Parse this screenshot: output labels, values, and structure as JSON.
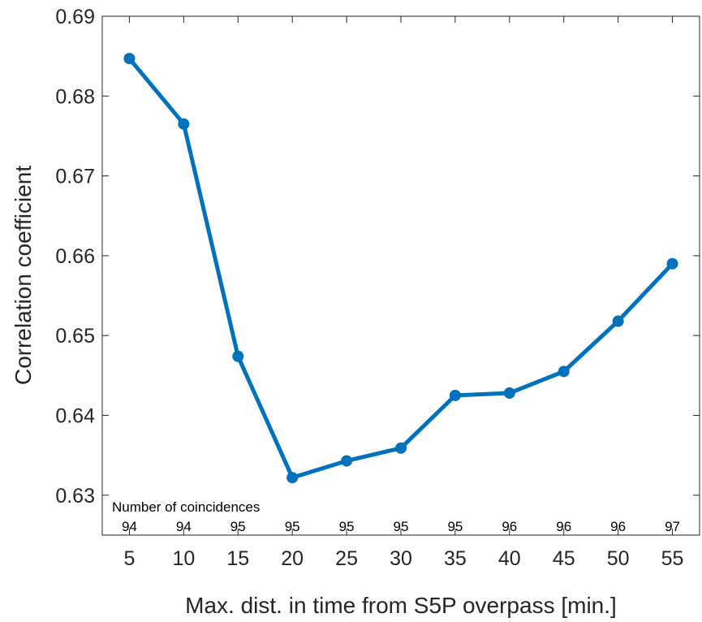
{
  "chart_data": {
    "type": "line",
    "title": "",
    "xlabel": "Max. dist. in time from S5P overpass [min.]",
    "ylabel": "Correlation coefficient",
    "x": [
      5,
      10,
      15,
      20,
      25,
      30,
      35,
      40,
      45,
      50,
      55
    ],
    "y": [
      0.6847,
      0.6765,
      0.6474,
      0.6322,
      0.6343,
      0.6359,
      0.6425,
      0.6428,
      0.6455,
      0.6518,
      0.659
    ],
    "xlim": [
      2.5,
      57.5
    ],
    "ylim": [
      0.625,
      0.69
    ],
    "xticks": [
      "5",
      "10",
      "15",
      "20",
      "25",
      "30",
      "35",
      "40",
      "45",
      "50",
      "55"
    ],
    "yticks": [
      "0.63",
      "0.64",
      "0.65",
      "0.66",
      "0.67",
      "0.68",
      "0.69"
    ],
    "series": [
      {
        "name": "",
        "color": "#0072BD"
      }
    ],
    "annotation": {
      "label": "Number of coincidences",
      "counts": [
        "94",
        "94",
        "95",
        "95",
        "95",
        "95",
        "95",
        "96",
        "96",
        "96",
        "97"
      ]
    },
    "grid": false,
    "legend": "none"
  }
}
